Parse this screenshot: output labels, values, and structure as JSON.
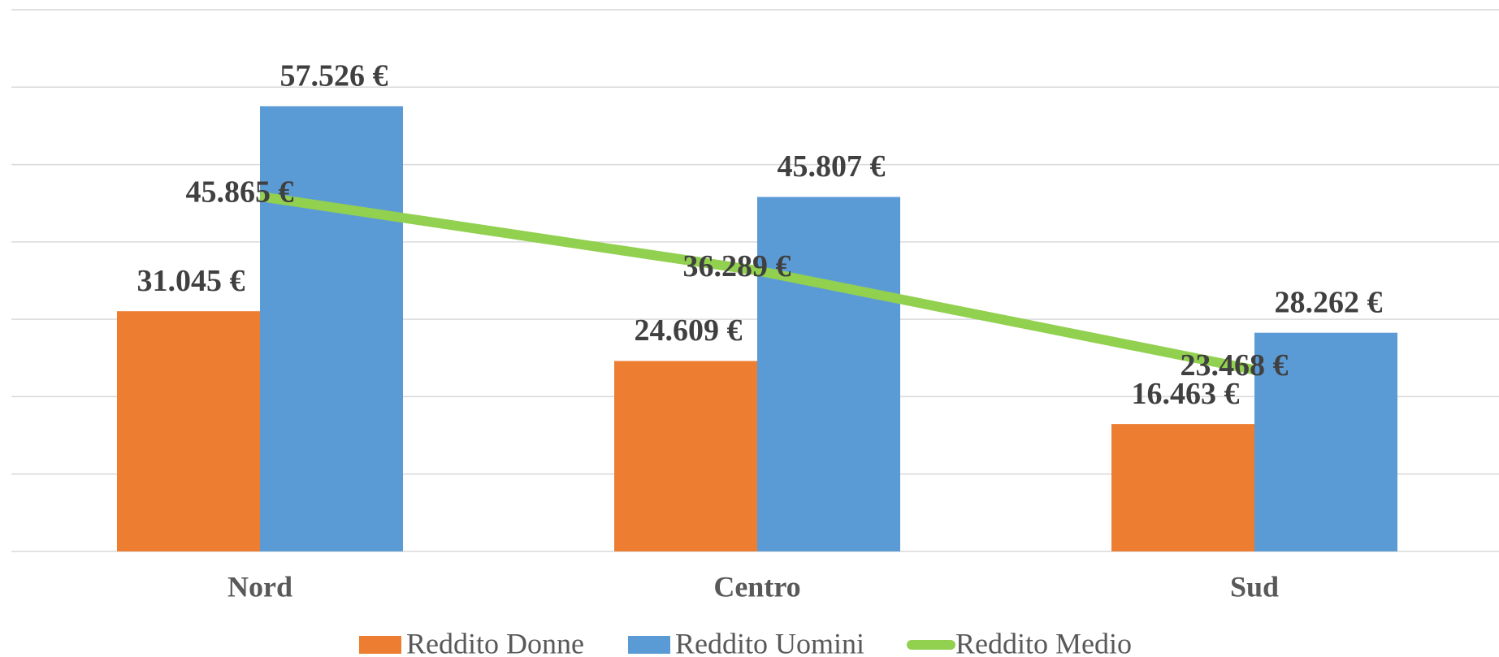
{
  "chart_data": {
    "type": "bar",
    "categories": [
      "Nord",
      "Centro",
      "Sud"
    ],
    "series": [
      {
        "name": "Reddito Donne",
        "color": "#ed7d31",
        "values": [
          31045,
          24609,
          16463
        ],
        "value_labels": [
          "31.045 €",
          "24.609 €",
          "16.463 €"
        ]
      },
      {
        "name": "Reddito Uomini",
        "color": "#5b9bd5",
        "values": [
          57526,
          45807,
          28262
        ],
        "value_labels": [
          "57.526 €",
          "45.807 €",
          "28.262 €"
        ]
      },
      {
        "name": "Reddito Medio",
        "type": "line",
        "color": "#92d050",
        "values": [
          45865,
          36289,
          23468
        ],
        "value_labels": [
          "45.865 €",
          "36.289 €",
          "23.468 €"
        ]
      }
    ],
    "ylim": [
      0,
      70000
    ],
    "yticks": [
      0,
      10000,
      20000,
      30000,
      40000,
      50000,
      60000,
      70000
    ],
    "grid": true,
    "legend": "bottom"
  }
}
